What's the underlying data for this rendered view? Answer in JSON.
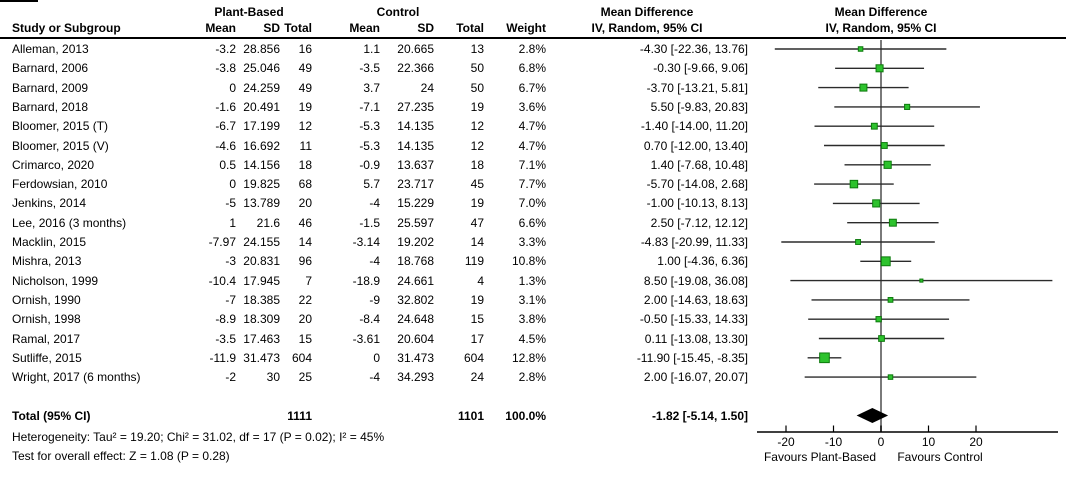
{
  "table": {
    "group_headers": {
      "plant": "Plant-Based",
      "control": "Control",
      "md_table": "Mean Difference",
      "md_plot": "Mean Difference"
    },
    "col_headers": {
      "study": "Study or Subgroup",
      "mean": "Mean",
      "sd": "SD",
      "total": "Total",
      "weight": "Weight",
      "ci": "IV, Random, 95% CI",
      "ci_plot": "IV, Random, 95% CI"
    },
    "rows": [
      {
        "study": "Alleman, 2013",
        "p_mean": "-3.2",
        "p_sd": "28.856",
        "p_total": "16",
        "c_mean": "1.1",
        "c_sd": "20.665",
        "c_total": "13"
      },
      {
        "study": "Barnard, 2006",
        "p_mean": "-3.8",
        "p_sd": "25.046",
        "p_total": "49",
        "c_mean": "-3.5",
        "c_sd": "22.366",
        "c_total": "50"
      },
      {
        "study": "Barnard, 2009",
        "p_mean": "0",
        "p_sd": "24.259",
        "p_total": "49",
        "c_mean": "3.7",
        "c_sd": "24",
        "c_total": "50"
      },
      {
        "study": "Barnard, 2018",
        "p_mean": "-1.6",
        "p_sd": "20.491",
        "p_total": "19",
        "c_mean": "-7.1",
        "c_sd": "27.235",
        "c_total": "19"
      },
      {
        "study": "Bloomer, 2015 (T)",
        "p_mean": "-6.7",
        "p_sd": "17.199",
        "p_total": "12",
        "c_mean": "-5.3",
        "c_sd": "14.135",
        "c_total": "12"
      },
      {
        "study": "Bloomer, 2015 (V)",
        "p_mean": "-4.6",
        "p_sd": "16.692",
        "p_total": "11",
        "c_mean": "-5.3",
        "c_sd": "14.135",
        "c_total": "12"
      },
      {
        "study": "Crimarco, 2020",
        "p_mean": "0.5",
        "p_sd": "14.156",
        "p_total": "18",
        "c_mean": "-0.9",
        "c_sd": "13.637",
        "c_total": "18"
      },
      {
        "study": "Ferdowsian, 2010",
        "p_mean": "0",
        "p_sd": "19.825",
        "p_total": "68",
        "c_mean": "5.7",
        "c_sd": "23.717",
        "c_total": "45"
      },
      {
        "study": "Jenkins, 2014",
        "p_mean": "-5",
        "p_sd": "13.789",
        "p_total": "20",
        "c_mean": "-4",
        "c_sd": "15.229",
        "c_total": "19"
      },
      {
        "study": "Lee, 2016 (3 months)",
        "p_mean": "1",
        "p_sd": "21.6",
        "p_total": "46",
        "c_mean": "-1.5",
        "c_sd": "25.597",
        "c_total": "47"
      },
      {
        "study": "Macklin, 2015",
        "p_mean": "-7.97",
        "p_sd": "24.155",
        "p_total": "14",
        "c_mean": "-3.14",
        "c_sd": "19.202",
        "c_total": "14"
      },
      {
        "study": "Mishra, 2013",
        "p_mean": "-3",
        "p_sd": "20.831",
        "p_total": "96",
        "c_mean": "-4",
        "c_sd": "18.768",
        "c_total": "119"
      },
      {
        "study": "Nicholson, 1999",
        "p_mean": "-10.4",
        "p_sd": "17.945",
        "p_total": "7",
        "c_mean": "-18.9",
        "c_sd": "24.661",
        "c_total": "4"
      },
      {
        "study": "Ornish, 1990",
        "p_mean": "-7",
        "p_sd": "18.385",
        "p_total": "22",
        "c_mean": "-9",
        "c_sd": "32.802",
        "c_total": "19"
      },
      {
        "study": "Ornish, 1998",
        "p_mean": "-8.9",
        "p_sd": "18.309",
        "p_total": "20",
        "c_mean": "-8.4",
        "c_sd": "24.648",
        "c_total": "15"
      },
      {
        "study": "Ramal, 2017",
        "p_mean": "-3.5",
        "p_sd": "17.463",
        "p_total": "15",
        "c_mean": "-3.61",
        "c_sd": "20.604",
        "c_total": "17"
      },
      {
        "study": "Sutliffe, 2015",
        "p_mean": "-11.9",
        "p_sd": "31.473",
        "p_total": "604",
        "c_mean": "0",
        "c_sd": "31.473",
        "c_total": "604"
      },
      {
        "study": "Wright, 2017 (6 months)",
        "p_mean": "-2",
        "p_sd": "30",
        "p_total": "25",
        "c_mean": "-4",
        "c_sd": "34.293",
        "c_total": "24"
      }
    ],
    "total_row": {
      "label": "Total (95% CI)",
      "p_total": "1111",
      "c_total": "1101",
      "weight": "100.0%"
    },
    "footnotes": [
      "Heterogeneity: Tau² = 19.20; Chi² = 31.02, df = 17 (P = 0.02); I² = 45%",
      "Test for overall effect: Z = 1.08 (P = 0.28)"
    ]
  },
  "chart_data": {
    "type": "scatter",
    "subtype": "forest-plot",
    "title": "Mean Difference, IV, Random, 95% CI",
    "x_ticks": [
      -20,
      -10,
      0,
      10,
      20
    ],
    "xlim": [
      -26,
      38
    ],
    "zero_line": 0,
    "grid": false,
    "legend": "none",
    "xlabel_left": "Favours Plant-Based",
    "xlabel_right": "Favours Control",
    "marker_color": "#2dc22d",
    "marker_border_color": "#0d7a0d",
    "ci_line_color": "#2b2b2b",
    "zero_line_color": "#7a7a7a",
    "diamond_color": "#000000",
    "studies": [
      {
        "name": "Alleman, 2013",
        "md": -4.3,
        "lo": -22.36,
        "hi": 13.76,
        "weight_pct": 2.8
      },
      {
        "name": "Barnard, 2006",
        "md": -0.3,
        "lo": -9.66,
        "hi": 9.06,
        "weight_pct": 6.8
      },
      {
        "name": "Barnard, 2009",
        "md": -3.7,
        "lo": -13.21,
        "hi": 5.81,
        "weight_pct": 6.7
      },
      {
        "name": "Barnard, 2018",
        "md": 5.5,
        "lo": -9.83,
        "hi": 20.83,
        "weight_pct": 3.6
      },
      {
        "name": "Bloomer, 2015 (T)",
        "md": -1.4,
        "lo": -14.0,
        "hi": 11.2,
        "weight_pct": 4.7
      },
      {
        "name": "Bloomer, 2015 (V)",
        "md": 0.7,
        "lo": -12.0,
        "hi": 13.4,
        "weight_pct": 4.7
      },
      {
        "name": "Crimarco, 2020",
        "md": 1.4,
        "lo": -7.68,
        "hi": 10.48,
        "weight_pct": 7.1
      },
      {
        "name": "Ferdowsian, 2010",
        "md": -5.7,
        "lo": -14.08,
        "hi": 2.68,
        "weight_pct": 7.7
      },
      {
        "name": "Jenkins, 2014",
        "md": -1.0,
        "lo": -10.13,
        "hi": 8.13,
        "weight_pct": 7.0
      },
      {
        "name": "Lee, 2016 (3 months)",
        "md": 2.5,
        "lo": -7.12,
        "hi": 12.12,
        "weight_pct": 6.6
      },
      {
        "name": "Macklin, 2015",
        "md": -4.83,
        "lo": -20.99,
        "hi": 11.33,
        "weight_pct": 3.3
      },
      {
        "name": "Mishra, 2013",
        "md": 1.0,
        "lo": -4.36,
        "hi": 6.36,
        "weight_pct": 10.8
      },
      {
        "name": "Nicholson, 1999",
        "md": 8.5,
        "lo": -19.08,
        "hi": 36.08,
        "weight_pct": 1.3
      },
      {
        "name": "Ornish, 1990",
        "md": 2.0,
        "lo": -14.63,
        "hi": 18.63,
        "weight_pct": 3.1
      },
      {
        "name": "Ornish, 1998",
        "md": -0.5,
        "lo": -15.33,
        "hi": 14.33,
        "weight_pct": 3.8
      },
      {
        "name": "Ramal, 2017",
        "md": 0.11,
        "lo": -13.08,
        "hi": 13.3,
        "weight_pct": 4.5
      },
      {
        "name": "Sutliffe, 2015",
        "md": -11.9,
        "lo": -15.45,
        "hi": -8.35,
        "weight_pct": 12.8
      },
      {
        "name": "Wright, 2017 (6 months)",
        "md": 2.0,
        "lo": -16.07,
        "hi": 20.07,
        "weight_pct": 2.8
      }
    ],
    "total": {
      "name": "Total (95% CI)",
      "md": -1.82,
      "lo": -5.14,
      "hi": 1.5,
      "weight_pct": 100.0
    }
  }
}
